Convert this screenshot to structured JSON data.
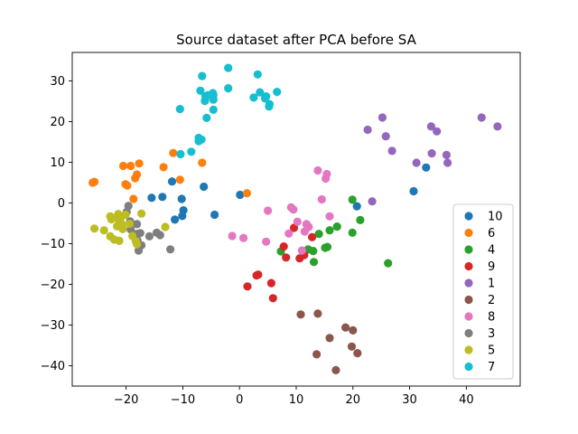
{
  "chart_data": {
    "type": "scatter",
    "title": "Source dataset after PCA before SA",
    "xlabel": "",
    "ylabel": "",
    "xlim": [
      -29.5,
      49.5
    ],
    "ylim": [
      -45,
      37
    ],
    "xticks": [
      -20,
      -10,
      0,
      10,
      20,
      30,
      40
    ],
    "yticks": [
      -40,
      -30,
      -20,
      -10,
      0,
      10,
      20,
      30
    ],
    "grid": false,
    "legend_position": "lower-right",
    "series": [
      {
        "name": "10",
        "color": "#1f77b4",
        "points": [
          [
            -15.5,
            1.3
          ],
          [
            -13.6,
            1.5
          ],
          [
            -11.9,
            5.3
          ],
          [
            -10.2,
            1.0
          ],
          [
            -9.9,
            -1.8
          ],
          [
            -10.1,
            -3.2
          ],
          [
            -11.4,
            -4.1
          ],
          [
            -6.3,
            4.0
          ],
          [
            -4.4,
            -2.9
          ],
          [
            0.1,
            2.0
          ],
          [
            20.7,
            -0.8
          ],
          [
            30.7,
            2.9
          ],
          [
            32.9,
            8.7
          ]
        ]
      },
      {
        "name": "6",
        "color": "#ff7f0e",
        "points": [
          [
            -25.6,
            5.2
          ],
          [
            -25.9,
            5.0
          ],
          [
            -20.5,
            9.1
          ],
          [
            -20.1,
            4.6
          ],
          [
            -19.8,
            4.3
          ],
          [
            -19.2,
            9.1
          ],
          [
            -18.1,
            7.0
          ],
          [
            -18.4,
            6.1
          ],
          [
            -17.7,
            9.7
          ],
          [
            -18.7,
            1.0
          ],
          [
            -13.4,
            8.8
          ],
          [
            -11.7,
            12.3
          ],
          [
            -10.5,
            5.7
          ],
          [
            -6.6,
            9.9
          ],
          [
            1.3,
            2.4
          ]
        ]
      },
      {
        "name": "4",
        "color": "#2ca02c",
        "points": [
          [
            7.3,
            -11.9
          ],
          [
            12.1,
            -11.4
          ],
          [
            13.0,
            -11.8
          ],
          [
            13.1,
            -14.5
          ],
          [
            14.0,
            -7.6
          ],
          [
            15.1,
            -11.0
          ],
          [
            15.5,
            -10.8
          ],
          [
            15.9,
            -6.7
          ],
          [
            17.2,
            -5.8
          ],
          [
            19.9,
            0.8
          ],
          [
            19.9,
            -7.3
          ],
          [
            21.3,
            -4.2
          ],
          [
            26.2,
            -14.8
          ]
        ]
      },
      {
        "name": "9",
        "color": "#d62728",
        "points": [
          [
            7.8,
            -10.7
          ],
          [
            8.2,
            -13.4
          ],
          [
            9.6,
            -6.1
          ],
          [
            10.6,
            -13.6
          ],
          [
            11.4,
            -12.8
          ],
          [
            12.8,
            -8.4
          ],
          [
            3.0,
            -17.8
          ],
          [
            3.3,
            -17.6
          ],
          [
            1.4,
            -20.5
          ],
          [
            5.6,
            -19.7
          ],
          [
            5.9,
            -23.4
          ]
        ]
      },
      {
        "name": "1",
        "color": "#9467bd",
        "points": [
          [
            22.6,
            18.0
          ],
          [
            25.2,
            21.0
          ],
          [
            25.8,
            16.4
          ],
          [
            26.9,
            12.8
          ],
          [
            23.4,
            0.4
          ],
          [
            31.2,
            9.9
          ],
          [
            33.8,
            18.8
          ],
          [
            33.9,
            12.2
          ],
          [
            34.8,
            17.6
          ],
          [
            36.5,
            11.8
          ],
          [
            36.7,
            9.9
          ],
          [
            42.7,
            21.0
          ],
          [
            45.5,
            18.8
          ]
        ]
      },
      {
        "name": "2",
        "color": "#8c564b",
        "points": [
          [
            10.8,
            -27.4
          ],
          [
            13.8,
            -27.2
          ],
          [
            13.6,
            -37.2
          ],
          [
            15.9,
            -33.2
          ],
          [
            18.7,
            -30.6
          ],
          [
            20.0,
            -31.3
          ],
          [
            17.0,
            -41.1
          ],
          [
            19.8,
            -35.3
          ],
          [
            20.8,
            -36.9
          ]
        ]
      },
      {
        "name": "8",
        "color": "#e377c2",
        "points": [
          [
            -1.3,
            -8.1
          ],
          [
            0.7,
            -8.6
          ],
          [
            4.7,
            -9.5
          ],
          [
            5.0,
            -1.9
          ],
          [
            8.7,
            -7.5
          ],
          [
            9.1,
            -1.1
          ],
          [
            9.5,
            -1.6
          ],
          [
            10.2,
            -4.6
          ],
          [
            11.0,
            -11.7
          ],
          [
            11.8,
            -5.2
          ],
          [
            11.5,
            -7.0
          ],
          [
            12.2,
            -5.9
          ],
          [
            13.8,
            8.0
          ],
          [
            14.5,
            0.9
          ],
          [
            15.2,
            6.0
          ],
          [
            15.4,
            7.1
          ],
          [
            15.9,
            -3.3
          ]
        ]
      },
      {
        "name": "3",
        "color": "#7f7f7f",
        "points": [
          [
            -19.6,
            -0.7
          ],
          [
            -19.9,
            -2.2
          ],
          [
            -19.3,
            -4.5
          ],
          [
            -19.2,
            -6.5
          ],
          [
            -18.1,
            -5.2
          ],
          [
            -18.1,
            -7.6
          ],
          [
            -17.5,
            -7.4
          ],
          [
            -18.0,
            -9.2
          ],
          [
            -17.8,
            -11.7
          ],
          [
            -17.3,
            -10.4
          ],
          [
            -15.9,
            -8.2
          ],
          [
            -14.6,
            -7.3
          ],
          [
            -14.0,
            -7.9
          ],
          [
            -12.2,
            -11.4
          ]
        ]
      },
      {
        "name": "5",
        "color": "#bcbd22",
        "points": [
          [
            -25.6,
            -6.3
          ],
          [
            -23.9,
            -6.7
          ],
          [
            -22.8,
            -3.3
          ],
          [
            -22.6,
            -4.0
          ],
          [
            -22.8,
            -8.2
          ],
          [
            -22.1,
            -9.0
          ],
          [
            -21.6,
            -5.7
          ],
          [
            -21.5,
            -3.8
          ],
          [
            -21.0,
            -4.7
          ],
          [
            -21.4,
            -2.7
          ],
          [
            -20.8,
            -3.3
          ],
          [
            -21.2,
            -9.3
          ],
          [
            -20.6,
            -6.4
          ],
          [
            -20.8,
            -5.1
          ],
          [
            -20.1,
            -2.9
          ],
          [
            -19.4,
            -5.1
          ],
          [
            -18.9,
            -8.1
          ],
          [
            -18.3,
            -9.4
          ],
          [
            -18.1,
            -10.1
          ],
          [
            -17.3,
            -2.6
          ],
          [
            -13.1,
            -5.9
          ]
        ]
      },
      {
        "name": "7",
        "color": "#17becf",
        "points": [
          [
            -10.5,
            23.1
          ],
          [
            -10.4,
            12.0
          ],
          [
            -8.5,
            12.6
          ],
          [
            -7.2,
            15.2
          ],
          [
            -7.2,
            16.0
          ],
          [
            -6.7,
            15.6
          ],
          [
            -6.9,
            27.6
          ],
          [
            -6.6,
            31.2
          ],
          [
            -6.1,
            25.1
          ],
          [
            -6.0,
            26.2
          ],
          [
            -5.8,
            20.9
          ],
          [
            -5.6,
            26.5
          ],
          [
            -4.6,
            22.9
          ],
          [
            -4.6,
            25.4
          ],
          [
            -4.6,
            26.5
          ],
          [
            -4.7,
            27.0
          ],
          [
            -2.0,
            33.2
          ],
          [
            -2.0,
            28.2
          ],
          [
            2.5,
            25.9
          ],
          [
            3.2,
            31.6
          ],
          [
            3.6,
            27.2
          ],
          [
            4.5,
            25.7
          ],
          [
            4.7,
            26.2
          ],
          [
            5.3,
            24.3
          ],
          [
            5.2,
            23.7
          ],
          [
            6.6,
            27.3
          ]
        ]
      }
    ]
  }
}
